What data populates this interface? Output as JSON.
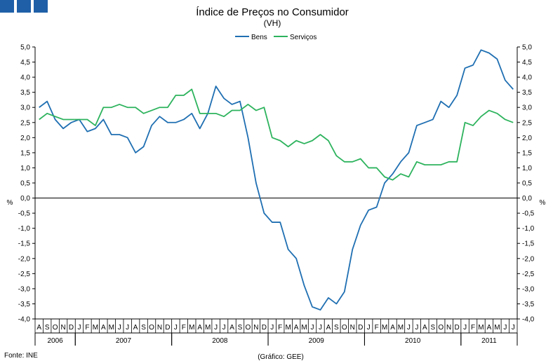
{
  "brand": {
    "squares": 3,
    "color": "#1f5fa8"
  },
  "chart_data": {
    "type": "line",
    "title": "Índice de Preços no Consumidor",
    "subtitle": "(VH)",
    "ylabel_left": "%",
    "ylabel_right": "%",
    "ylim": [
      -4.0,
      5.0
    ],
    "ystep": 0.5,
    "y_ticks": [
      "5,0",
      "4,5",
      "4,0",
      "3,5",
      "3,0",
      "2,5",
      "2,0",
      "1,5",
      "1,0",
      "0,5",
      "0,0",
      "-0,5",
      "-1,0",
      "-1,5",
      "-2,0",
      "-2,5",
      "-3,0",
      "-3,5",
      "-4,0"
    ],
    "grid": false,
    "legend_position": "top-center",
    "months": [
      "A",
      "S",
      "O",
      "N",
      "D",
      "J",
      "F",
      "M",
      "A",
      "M",
      "J",
      "J",
      "A",
      "S",
      "O",
      "N",
      "D",
      "J",
      "F",
      "M",
      "A",
      "M",
      "J",
      "J",
      "A",
      "S",
      "O",
      "N",
      "D",
      "J",
      "F",
      "M",
      "A",
      "M",
      "J",
      "J",
      "A",
      "S",
      "O",
      "N",
      "D",
      "J",
      "F",
      "M",
      "A",
      "M",
      "J",
      "J",
      "A",
      "S",
      "O",
      "N",
      "D",
      "J",
      "F",
      "M",
      "A",
      "M",
      "J",
      "J"
    ],
    "years": [
      {
        "label": "2006",
        "start": 0,
        "count": 5
      },
      {
        "label": "2007",
        "start": 5,
        "count": 12
      },
      {
        "label": "2008",
        "start": 17,
        "count": 12
      },
      {
        "label": "2009",
        "start": 29,
        "count": 12
      },
      {
        "label": "2010",
        "start": 41,
        "count": 12
      },
      {
        "label": "2011",
        "start": 53,
        "count": 7
      }
    ],
    "series": [
      {
        "name": "Bens",
        "color": "#1f6fb2",
        "values": [
          3.0,
          3.2,
          2.6,
          2.3,
          2.5,
          2.6,
          2.2,
          2.3,
          2.6,
          2.1,
          2.1,
          2.0,
          1.5,
          1.7,
          2.4,
          2.7,
          2.5,
          2.5,
          2.6,
          2.8,
          2.3,
          2.8,
          3.7,
          3.3,
          3.1,
          3.2,
          2.0,
          0.5,
          -0.5,
          -0.8,
          -0.8,
          -1.7,
          -2.0,
          -2.9,
          -3.6,
          -3.7,
          -3.3,
          -3.5,
          -3.1,
          -1.7,
          -0.9,
          -0.4,
          -0.3,
          0.5,
          0.8,
          1.2,
          1.5,
          2.4,
          2.5,
          2.6,
          3.2,
          3.0,
          3.4,
          4.3,
          4.4,
          4.9,
          4.8,
          4.6,
          3.9,
          3.6
        ]
      },
      {
        "name": "Serviços",
        "color": "#2db35d",
        "values": [
          2.6,
          2.8,
          2.7,
          2.6,
          2.6,
          2.6,
          2.6,
          2.4,
          3.0,
          3.0,
          3.1,
          3.0,
          3.0,
          2.8,
          2.9,
          3.0,
          3.0,
          3.4,
          3.4,
          3.6,
          2.8,
          2.8,
          2.8,
          2.7,
          2.9,
          2.9,
          3.1,
          2.9,
          3.0,
          2.0,
          1.9,
          1.7,
          1.9,
          1.8,
          1.9,
          2.1,
          1.9,
          1.4,
          1.2,
          1.2,
          1.3,
          1.0,
          1.0,
          0.7,
          0.6,
          0.8,
          0.7,
          1.2,
          1.1,
          1.1,
          1.1,
          1.2,
          1.2,
          2.5,
          2.4,
          2.7,
          2.9,
          2.8,
          2.6,
          2.5
        ]
      }
    ]
  },
  "footer": {
    "source": "Fonte: INE",
    "credit": "(Gráfico: GEE)"
  }
}
